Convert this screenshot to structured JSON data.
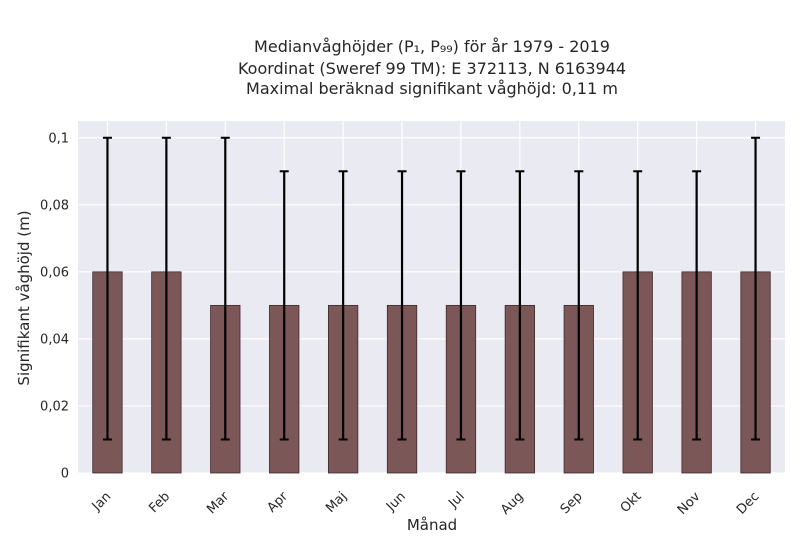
{
  "chart_data": {
    "type": "bar",
    "title_lines": [
      "Medianvåghöjder (P₁, P₉₉) för år 1979 - 2019",
      "Koordinat (Sweref 99 TM): E 372113, N 6163944",
      "Maximal beräknad signifikant våghöjd: 0,11 m"
    ],
    "xlabel": "Månad",
    "ylabel": "Signifikant våghöjd (m)",
    "categories": [
      "Jan",
      "Feb",
      "Mar",
      "Apr",
      "Maj",
      "Jun",
      "Jul",
      "Aug",
      "Sep",
      "Okt",
      "Nov",
      "Dec"
    ],
    "values": [
      0.06,
      0.06,
      0.05,
      0.05,
      0.05,
      0.05,
      0.05,
      0.05,
      0.05,
      0.06,
      0.06,
      0.06
    ],
    "error_low": [
      0.01,
      0.01,
      0.01,
      0.01,
      0.01,
      0.01,
      0.01,
      0.01,
      0.01,
      0.01,
      0.01,
      0.01
    ],
    "error_high": [
      0.1,
      0.1,
      0.1,
      0.09,
      0.09,
      0.09,
      0.09,
      0.09,
      0.09,
      0.09,
      0.09,
      0.1
    ],
    "ylim": [
      0,
      0.105
    ],
    "yticks": [
      0,
      0.02,
      0.04,
      0.06,
      0.08,
      0.1
    ],
    "ytick_labels": [
      "0",
      "0,02",
      "0,04",
      "0,06",
      "0,08",
      "0,1"
    ],
    "grid": true,
    "colors": {
      "bar": "#7b5757",
      "bar_edge": "#3f2a2a",
      "error": "#000000",
      "plot_bg": "#eaeaf2",
      "grid": "#ffffff"
    }
  }
}
